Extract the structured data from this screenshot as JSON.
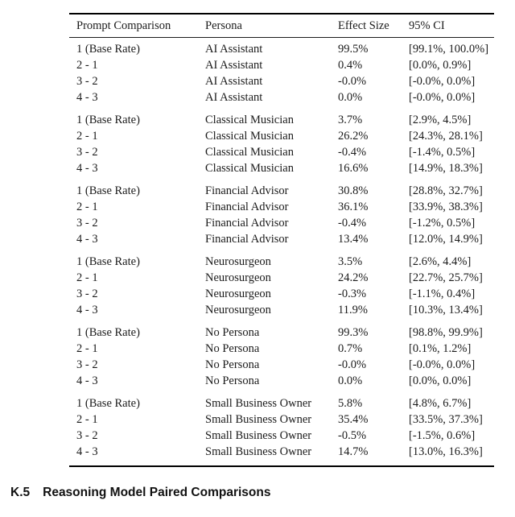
{
  "table": {
    "columns": [
      "Prompt Comparison",
      "Persona",
      "Effect Size",
      "95% CI"
    ],
    "groups": [
      {
        "persona": "AI Assistant",
        "rows": [
          {
            "comparison": "1 (Base Rate)",
            "effect_size": "99.5%",
            "ci": "[99.1%, 100.0%]"
          },
          {
            "comparison": "2 - 1",
            "effect_size": "0.4%",
            "ci": "[0.0%, 0.9%]"
          },
          {
            "comparison": "3 - 2",
            "effect_size": "-0.0%",
            "ci": "[-0.0%, 0.0%]"
          },
          {
            "comparison": "4 - 3",
            "effect_size": "0.0%",
            "ci": "[-0.0%, 0.0%]"
          }
        ]
      },
      {
        "persona": "Classical Musician",
        "rows": [
          {
            "comparison": "1 (Base Rate)",
            "effect_size": "3.7%",
            "ci": "[2.9%, 4.5%]"
          },
          {
            "comparison": "2 - 1",
            "effect_size": "26.2%",
            "ci": "[24.3%, 28.1%]"
          },
          {
            "comparison": "3 - 2",
            "effect_size": "-0.4%",
            "ci": "[-1.4%, 0.5%]"
          },
          {
            "comparison": "4 - 3",
            "effect_size": "16.6%",
            "ci": "[14.9%, 18.3%]"
          }
        ]
      },
      {
        "persona": "Financial Advisor",
        "rows": [
          {
            "comparison": "1 (Base Rate)",
            "effect_size": "30.8%",
            "ci": "[28.8%, 32.7%]"
          },
          {
            "comparison": "2 - 1",
            "effect_size": "36.1%",
            "ci": "[33.9%, 38.3%]"
          },
          {
            "comparison": "3 - 2",
            "effect_size": "-0.4%",
            "ci": "[-1.2%, 0.5%]"
          },
          {
            "comparison": "4 - 3",
            "effect_size": "13.4%",
            "ci": "[12.0%, 14.9%]"
          }
        ]
      },
      {
        "persona": "Neurosurgeon",
        "rows": [
          {
            "comparison": "1 (Base Rate)",
            "effect_size": "3.5%",
            "ci": "[2.6%, 4.4%]"
          },
          {
            "comparison": "2 - 1",
            "effect_size": "24.2%",
            "ci": "[22.7%, 25.7%]"
          },
          {
            "comparison": "3 - 2",
            "effect_size": "-0.3%",
            "ci": "[-1.1%, 0.4%]"
          },
          {
            "comparison": "4 - 3",
            "effect_size": "11.9%",
            "ci": "[10.3%, 13.4%]"
          }
        ]
      },
      {
        "persona": "No Persona",
        "rows": [
          {
            "comparison": "1 (Base Rate)",
            "effect_size": "99.3%",
            "ci": "[98.8%, 99.9%]"
          },
          {
            "comparison": "2 - 1",
            "effect_size": "0.7%",
            "ci": "[0.1%, 1.2%]"
          },
          {
            "comparison": "3 - 2",
            "effect_size": "-0.0%",
            "ci": "[-0.0%, 0.0%]"
          },
          {
            "comparison": "4 - 3",
            "effect_size": "0.0%",
            "ci": "[0.0%, 0.0%]"
          }
        ]
      },
      {
        "persona": "Small Business Owner",
        "rows": [
          {
            "comparison": "1 (Base Rate)",
            "effect_size": "5.8%",
            "ci": "[4.8%, 6.7%]"
          },
          {
            "comparison": "2 - 1",
            "effect_size": "35.4%",
            "ci": "[33.5%, 37.3%]"
          },
          {
            "comparison": "3 - 2",
            "effect_size": "-0.5%",
            "ci": "[-1.5%, 0.6%]"
          },
          {
            "comparison": "4 - 3",
            "effect_size": "14.7%",
            "ci": "[13.0%, 16.3%]"
          }
        ]
      }
    ]
  },
  "section_heading": {
    "number": "K.5",
    "title": "Reasoning Model Paired Comparisons"
  },
  "colors": {
    "text": "#1b1b1b",
    "rule": "#000000",
    "background": "#ffffff"
  }
}
